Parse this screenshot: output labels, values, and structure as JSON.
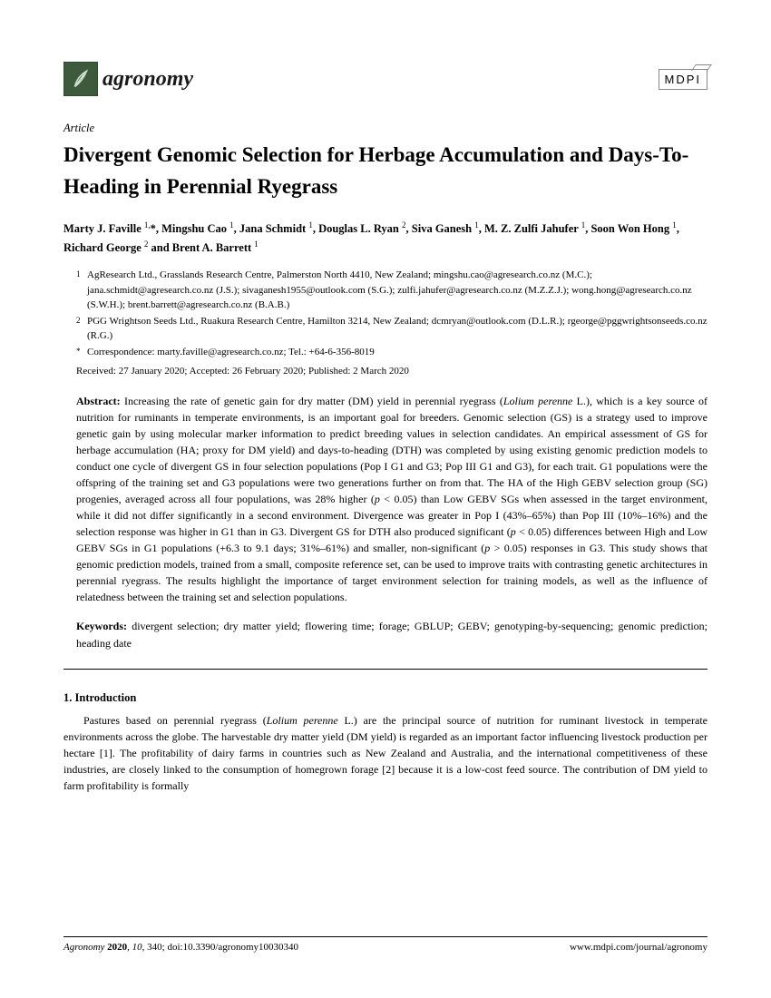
{
  "journal": {
    "name": "agronomy",
    "publisher": "MDPI"
  },
  "article": {
    "type": "Article",
    "title": "Divergent Genomic Selection for Herbage Accumulation and Days-To-Heading in Perennial Ryegrass",
    "authors_html": "Marty J. Faville <sup>1,</sup>*, Mingshu Cao <sup>1</sup>, Jana Schmidt <sup>1</sup>, Douglas L. Ryan <sup>2</sup>, Siva Ganesh <sup>1</sup>, M. Z. Zulfi Jahufer <sup>1</sup>, Soon Won Hong <sup>1</sup>, Richard George <sup>2</sup> and Brent A. Barrett <sup>1</sup>",
    "affiliations": [
      {
        "num": "1",
        "text": "AgResearch Ltd., Grasslands Research Centre, Palmerston North 4410, New Zealand; mingshu.cao@agresearch.co.nz (M.C.); jana.schmidt@agresearch.co.nz (J.S.); sivaganesh1955@outlook.com (S.G.); zulfi.jahufer@agresearch.co.nz (M.Z.Z.J.); wong.hong@agresearch.co.nz (S.W.H.); brent.barrett@agresearch.co.nz (B.A.B.)"
      },
      {
        "num": "2",
        "text": "PGG Wrightson Seeds Ltd., Ruakura Research Centre, Hamilton 3214, New Zealand; dcmryan@outlook.com (D.L.R.); rgeorge@pggwrightsonseeds.co.nz (R.G.)"
      },
      {
        "num": "*",
        "text": "Correspondence: marty.faville@agresearch.co.nz; Tel.: +64-6-356-8019"
      }
    ],
    "dates": "Received: 27 January 2020; Accepted: 26 February 2020; Published: 2 March 2020",
    "abstract_label": "Abstract:",
    "abstract_html": "Increasing the rate of genetic gain for dry matter (DM) yield in perennial ryegrass (<i>Lolium perenne</i> L.), which is a key source of nutrition for ruminants in temperate environments, is an important goal for breeders. Genomic selection (GS) is a strategy used to improve genetic gain by using molecular marker information to predict breeding values in selection candidates. An empirical assessment of GS for herbage accumulation (HA; proxy for DM yield) and days-to-heading (DTH) was completed by using existing genomic prediction models to conduct one cycle of divergent GS in four selection populations (Pop I G1 and G3; Pop III G1 and G3), for each trait. G1 populations were the offspring of the training set and G3 populations were two generations further on from that. The HA of the High GEBV selection group (SG) progenies, averaged across all four populations, was 28% higher (<i>p</i> &lt; 0.05) than Low GEBV SGs when assessed in the target environment, while it did not differ significantly in a second environment. Divergence was greater in Pop I (43%–65%) than Pop III (10%–16%) and the selection response was higher in G1 than in G3. Divergent GS for DTH also produced significant (<i>p</i> &lt; 0.05) differences between High and Low GEBV SGs in G1 populations (+6.3 to 9.1 days; 31%–61%) and smaller, non-significant (<i>p</i> &gt; 0.05) responses in G3. This study shows that genomic prediction models, trained from a small, composite reference set, can be used to improve traits with contrasting genetic architectures in perennial ryegrass. The results highlight the importance of target environment selection for training models, as well as the influence of relatedness between the training set and selection populations.",
    "keywords_label": "Keywords:",
    "keywords_text": "divergent selection; dry matter yield; flowering time; forage; GBLUP; GEBV; genotyping-by-sequencing; genomic prediction; heading date"
  },
  "section": {
    "heading": "1. Introduction",
    "body_html": "Pastures based on perennial ryegrass (<i>Lolium perenne</i> L.) are the principal source of nutrition for ruminant livestock in temperate environments across the globe. The harvestable dry matter yield (DM yield) is regarded as an important factor influencing livestock production per hectare [1]. The profitability of dairy farms in countries such as New Zealand and Australia, and the international competitiveness of these industries, are closely linked to the consumption of homegrown forage [2] because it is a low-cost feed source. The contribution of DM yield to farm profitability is formally"
  },
  "footer": {
    "citation_html": "<i>Agronomy</i> <b>2020</b>, <i>10</i>, 340; doi:10.3390/agronomy10030340",
    "url": "www.mdpi.com/journal/agronomy"
  }
}
